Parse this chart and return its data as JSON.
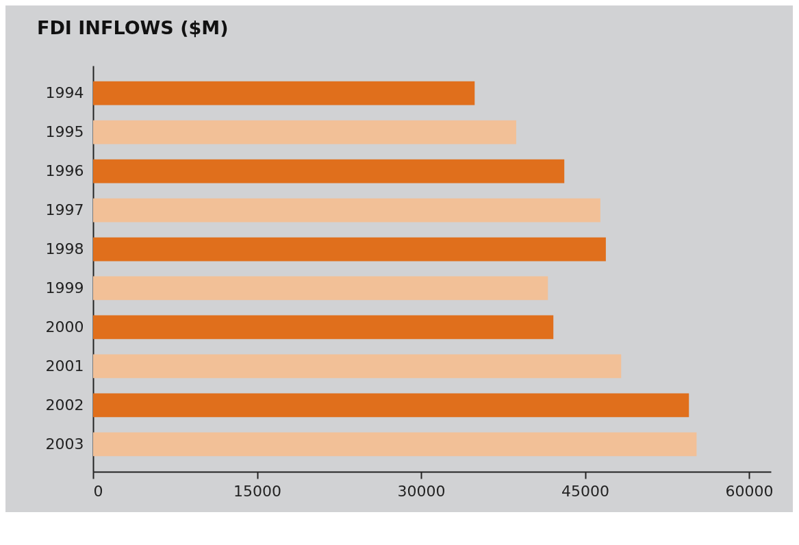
{
  "chart_data": {
    "type": "bar",
    "orientation": "horizontal",
    "title": "FDI INFLOWS ($M)",
    "categories": [
      "1994",
      "1995",
      "1996",
      "1997",
      "1998",
      "1999",
      "2000",
      "2001",
      "2002",
      "2003"
    ],
    "values": [
      34900,
      38700,
      43100,
      46400,
      46900,
      41600,
      42100,
      48300,
      54500,
      55200
    ],
    "colors": [
      "#e06f1c",
      "#f2c097",
      "#e06f1c",
      "#f2c097",
      "#e06f1c",
      "#f2c097",
      "#e06f1c",
      "#f2c097",
      "#e06f1c",
      "#f2c097"
    ],
    "xlim": [
      0,
      62000
    ],
    "xticks": [
      0,
      15000,
      30000,
      45000,
      60000
    ],
    "grid": false
  }
}
